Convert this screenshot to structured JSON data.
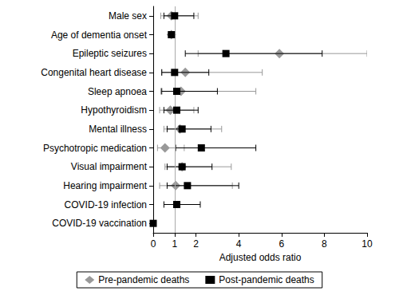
{
  "chart_data": {
    "type": "forest",
    "orientation": "horizontal",
    "x_label": "Adjusted odds ratio",
    "categories": [
      "Male sex",
      "Age of dementia onset",
      "Epileptic seizures",
      "Congenital heart disease",
      "Sleep apnoea",
      "Hypothyroidism",
      "Mental illness",
      "Psychotropic medication",
      "Visual impairment",
      "Hearing impairment",
      "COVID-19 infection",
      "COVID-19 vaccination"
    ],
    "xlim": [
      0,
      10
    ],
    "xticks": [
      0,
      1,
      2,
      4,
      6,
      8,
      10
    ],
    "reference_x": 1,
    "grid": false,
    "legend": "bottom",
    "series": [
      {
        "name": "Pre-pandemic deaths",
        "color": "#999999",
        "marker": "diamond",
        "values": [
          0.85,
          0.85,
          5.9,
          1.5,
          1.3,
          0.8,
          1.25,
          0.55,
          1.35,
          1.05,
          null,
          null
        ],
        "lower": [
          0.35,
          0.8,
          2.1,
          0.4,
          0.35,
          0.3,
          0.5,
          0.2,
          0.55,
          0.3,
          null,
          null
        ],
        "upper": [
          2.1,
          0.9,
          10.0,
          5.1,
          4.8,
          1.9,
          3.2,
          1.45,
          3.65,
          3.7,
          null,
          null
        ]
      },
      {
        "name": "Post-pandemic deaths",
        "color": "#000000",
        "marker": "square",
        "values": [
          1.0,
          0.85,
          3.4,
          1.0,
          1.1,
          1.1,
          1.35,
          2.25,
          1.35,
          1.6,
          1.1,
          0.0
        ],
        "lower": [
          0.5,
          0.8,
          1.5,
          0.4,
          0.4,
          0.5,
          0.65,
          1.05,
          0.65,
          0.65,
          0.5,
          0.0
        ],
        "upper": [
          1.9,
          0.9,
          7.9,
          2.6,
          3.0,
          2.1,
          2.7,
          4.8,
          2.75,
          4.0,
          2.2,
          0.0
        ]
      }
    ]
  }
}
